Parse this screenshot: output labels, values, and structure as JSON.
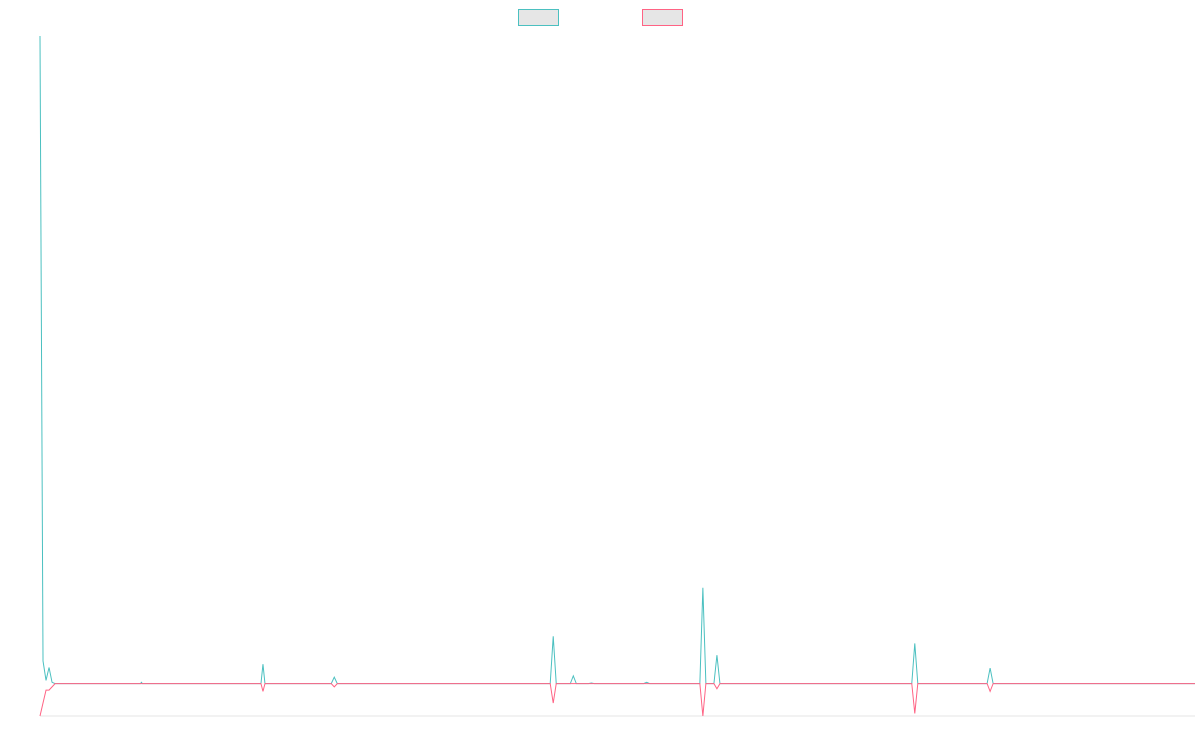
{
  "chart_data": {
    "type": "line",
    "title": "",
    "xlabel": "",
    "ylabel": "",
    "legend": "top-center",
    "grid": false,
    "ylim": [
      -5,
      100
    ],
    "xlim": [
      0,
      115
    ],
    "series": [
      {
        "color": "#4bc0c0",
        "legend_fill": "#e6e6e6",
        "x": [
          0,
          0.3,
          0.6,
          0.9,
          1.2,
          1.5,
          2.0,
          10,
          10.1,
          10.2,
          22,
          22.2,
          22.4,
          29,
          29.3,
          29.6,
          50.8,
          51.1,
          51.4,
          52.8,
          53.1,
          53.4,
          54.6,
          54.9,
          55.2,
          60.1,
          60.4,
          60.7,
          65.7,
          66.0,
          66.3,
          67.1,
          67.4,
          67.7,
          86.8,
          87.1,
          87.4,
          94.3,
          94.6,
          94.9,
          115
        ],
        "y": [
          100,
          3.5,
          0.5,
          2.5,
          0.2,
          0,
          0,
          0,
          0.2,
          0,
          0,
          3,
          0,
          0,
          1,
          0,
          0,
          7.3,
          0,
          0,
          1.2,
          0,
          0,
          0.1,
          0,
          0,
          0.2,
          0,
          0,
          14.8,
          0,
          0,
          4.4,
          0,
          0,
          6.2,
          0,
          0,
          2.4,
          0,
          0
        ]
      },
      {
        "color": "#ff6384",
        "legend_fill": "#e6e6e6",
        "x": [
          0,
          0.3,
          0.6,
          0.9,
          1.2,
          1.5,
          2.0,
          22,
          22.2,
          22.4,
          29,
          29.3,
          29.6,
          50.8,
          51.1,
          51.4,
          65.7,
          66.0,
          66.3,
          67.1,
          67.4,
          67.7,
          86.8,
          87.1,
          87.4,
          94.3,
          94.6,
          94.9,
          115
        ],
        "y": [
          -5,
          -3,
          -1,
          -1,
          -0.5,
          0,
          0,
          0,
          -1.2,
          0,
          0,
          -0.5,
          0,
          0,
          -3,
          0,
          0,
          -5,
          0,
          0,
          -0.8,
          0,
          0,
          -4.6,
          0,
          0,
          -1.2,
          0,
          0
        ]
      }
    ]
  }
}
